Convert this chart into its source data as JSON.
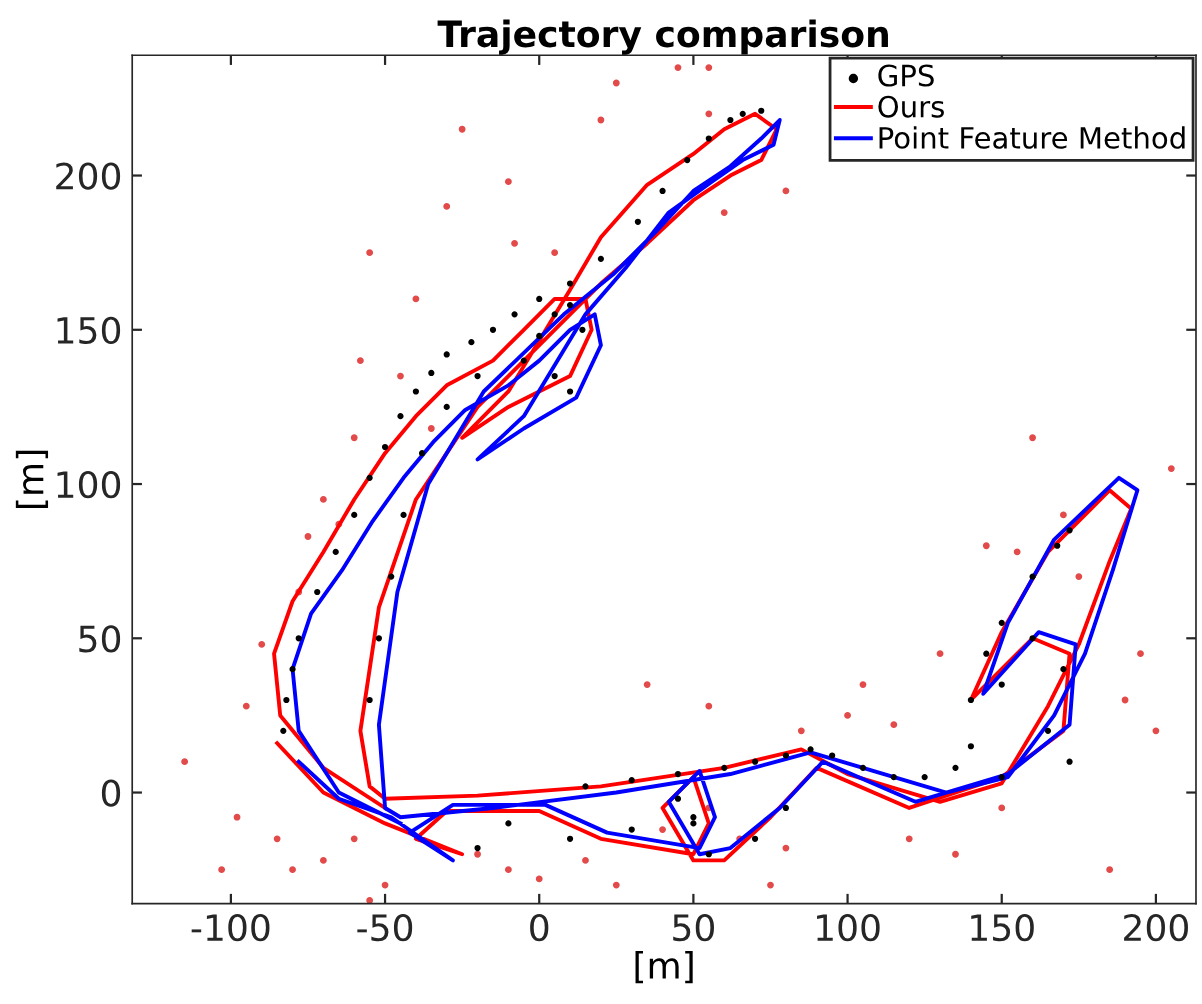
{
  "chart_data": {
    "type": "line",
    "title": "Trajectory comparison",
    "xlabel": "[m]",
    "ylabel": "[m]",
    "xlim": [
      -132,
      213
    ],
    "ylim": [
      -36,
      239
    ],
    "xticks": [
      -100,
      -50,
      0,
      50,
      100,
      150,
      200
    ],
    "yticks": [
      0,
      50,
      100,
      150,
      200
    ],
    "grid": false,
    "legend": "top right",
    "series": [
      {
        "type": "scatter",
        "marker": "circle",
        "color": "#e34a4a",
        "x": [
          -115,
          -103,
          -98,
          -95,
          -90,
          -85,
          -80,
          -78,
          -75,
          -70,
          -65,
          -60,
          -58,
          -55,
          -45,
          -40,
          -35,
          -30,
          -25,
          -10,
          -8,
          5,
          20,
          25,
          45,
          55,
          60,
          80,
          55,
          -20,
          -10,
          0,
          15,
          25,
          40,
          55,
          65,
          75,
          80,
          35,
          55,
          85,
          100,
          115,
          120,
          135,
          150,
          160,
          170,
          175,
          185,
          190,
          195,
          205,
          200,
          145,
          155,
          130,
          105,
          -50,
          -55,
          -60,
          -70
        ],
        "values": [
          10,
          -25,
          -8,
          28,
          48,
          -15,
          -25,
          65,
          83,
          95,
          87,
          115,
          140,
          175,
          135,
          160,
          118,
          190,
          215,
          198,
          178,
          175,
          218,
          230,
          235,
          235,
          188,
          195,
          220,
          -20,
          -25,
          -28,
          -22,
          -30,
          -12,
          -5,
          -15,
          -30,
          -18,
          35,
          28,
          20,
          25,
          22,
          -15,
          -20,
          -5,
          115,
          90,
          70,
          -25,
          30,
          45,
          105,
          20,
          80,
          78,
          45,
          35,
          -30,
          -35,
          -15,
          -22
        ]
      },
      {
        "type": "scatter",
        "name": "GPS",
        "marker": "circle",
        "color": "#000000",
        "x": [
          -83,
          -82,
          -80,
          -78,
          -72,
          -66,
          -60,
          -55,
          -50,
          -45,
          -40,
          -35,
          -30,
          -22,
          -15,
          -8,
          0,
          10,
          20,
          32,
          40,
          48,
          55,
          62,
          66,
          72,
          -55,
          -52,
          -48,
          -44,
          -38,
          -30,
          -20,
          -5,
          5,
          10,
          14,
          10,
          0,
          5,
          15,
          30,
          45,
          60,
          70,
          80,
          88,
          95,
          105,
          115,
          125,
          135,
          140,
          145,
          150,
          160,
          168,
          172,
          170,
          160,
          150,
          165,
          172,
          150,
          140,
          -20,
          -10,
          10,
          30,
          50,
          70,
          80,
          45,
          50,
          55
        ],
        "values": [
          20,
          30,
          40,
          50,
          65,
          78,
          90,
          102,
          112,
          122,
          130,
          136,
          142,
          146,
          150,
          155,
          160,
          165,
          173,
          185,
          195,
          205,
          212,
          218,
          220,
          221,
          30,
          50,
          70,
          90,
          110,
          125,
          135,
          140,
          135,
          130,
          150,
          158,
          148,
          155,
          2,
          4,
          6,
          8,
          10,
          12,
          14,
          12,
          8,
          5,
          5,
          8,
          30,
          45,
          55,
          70,
          80,
          85,
          40,
          50,
          35,
          20,
          10,
          5,
          15,
          -18,
          -10,
          -15,
          -12,
          -8,
          -15,
          -5,
          -2,
          -10,
          -20
        ]
      },
      {
        "name": "Ours",
        "color": "#ff0000",
        "x": [
          -50,
          -70,
          -84,
          -86,
          -80,
          -70,
          -60,
          -50,
          -40,
          -30,
          -15,
          -5,
          5,
          15,
          17,
          10,
          -10,
          -25,
          -10,
          10,
          20,
          35,
          50,
          60,
          70,
          77,
          72,
          62,
          50,
          35,
          20,
          5,
          -20,
          -40,
          -52,
          -58,
          -55,
          -50,
          -20,
          20,
          60,
          85,
          100,
          130,
          150,
          165,
          175,
          185,
          192,
          185,
          165,
          150,
          140,
          160,
          172,
          170,
          150,
          120,
          90,
          75,
          60,
          50,
          40,
          50,
          55,
          50,
          20,
          0,
          -30,
          -40,
          -25,
          -50,
          -70,
          -85
        ],
        "values": [
          -5,
          8,
          25,
          45,
          62,
          78,
          95,
          110,
          122,
          132,
          140,
          150,
          160,
          160,
          150,
          135,
          125,
          115,
          130,
          163,
          180,
          197,
          207,
          215,
          220,
          215,
          205,
          200,
          192,
          178,
          165,
          150,
          125,
          95,
          60,
          20,
          2,
          -2,
          -1,
          2,
          8,
          14,
          6,
          -3,
          3,
          28,
          48,
          75,
          92,
          98,
          78,
          52,
          30,
          50,
          45,
          20,
          5,
          -5,
          8,
          -8,
          -22,
          -22,
          -5,
          5,
          -10,
          -20,
          -15,
          -6,
          -6,
          -15,
          -20,
          -10,
          0,
          16
        ]
      },
      {
        "name": "Point Feature Method",
        "color": "#0000ff",
        "x": [
          -45,
          -65,
          -78,
          -80,
          -74,
          -64,
          -54,
          -44,
          -34,
          -24,
          -10,
          0,
          10,
          18,
          20,
          12,
          -5,
          -20,
          -5,
          15,
          28,
          42,
          56,
          66,
          76,
          78,
          72,
          62,
          50,
          38,
          24,
          8,
          -18,
          -36,
          -46,
          -52,
          -50,
          -45,
          -15,
          25,
          62,
          88,
          105,
          132,
          152,
          167,
          177,
          186,
          194,
          188,
          167,
          152,
          144,
          162,
          174,
          172,
          152,
          122,
          92,
          78,
          62,
          52,
          42,
          52,
          57,
          52,
          22,
          2,
          -28,
          -42,
          -28,
          -48,
          -65,
          -78
        ],
        "values": [
          -10,
          0,
          20,
          40,
          58,
          72,
          88,
          102,
          114,
          124,
          132,
          140,
          150,
          155,
          145,
          128,
          118,
          108,
          122,
          155,
          170,
          188,
          198,
          205,
          210,
          218,
          212,
          203,
          195,
          182,
          168,
          155,
          130,
          100,
          65,
          22,
          -5,
          -8,
          -5,
          0,
          6,
          13,
          8,
          0,
          5,
          25,
          45,
          72,
          98,
          102,
          82,
          55,
          32,
          52,
          48,
          22,
          6,
          -3,
          10,
          -5,
          -18,
          -20,
          -3,
          7,
          -8,
          -18,
          -13,
          -4,
          -4,
          -13,
          -22,
          -8,
          -2,
          10
        ]
      }
    ]
  }
}
